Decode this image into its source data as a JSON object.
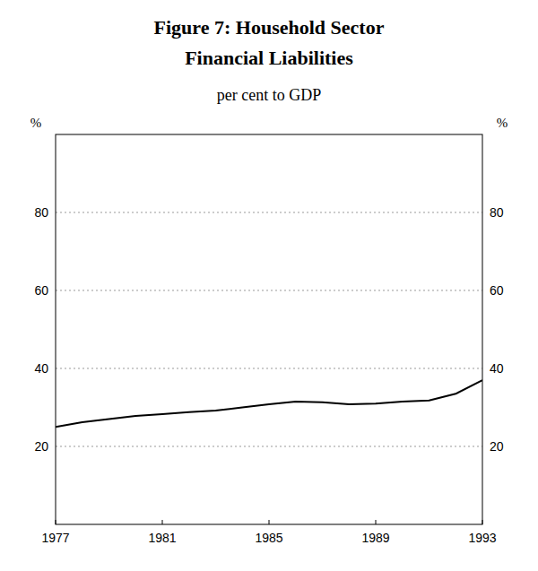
{
  "chart_data": {
    "type": "line",
    "title": [
      "Figure 7: Household Sector",
      "Financial Liabilities"
    ],
    "subtitle": "per cent to GDP",
    "y_label": "%",
    "y2_label": "%",
    "x": [
      1977,
      1978,
      1979,
      1980,
      1981,
      1982,
      1983,
      1984,
      1985,
      1986,
      1987,
      1988,
      1989,
      1990,
      1991,
      1992,
      1993
    ],
    "values": [
      25.0,
      26.2,
      27.0,
      27.8,
      28.3,
      28.8,
      29.2,
      30.0,
      30.8,
      31.5,
      31.3,
      30.8,
      31.0,
      31.5,
      31.8,
      33.5,
      37.0
    ],
    "color": "#000000",
    "xlim": [
      1977,
      1993
    ],
    "xticks": [
      1977,
      1981,
      1985,
      1989,
      1993
    ],
    "ylim": [
      0,
      100
    ],
    "yticks": [
      20,
      40,
      60,
      80
    ],
    "y2lim": [
      0,
      100
    ],
    "y2ticks": [
      20,
      40,
      60,
      80
    ],
    "grid": true
  }
}
